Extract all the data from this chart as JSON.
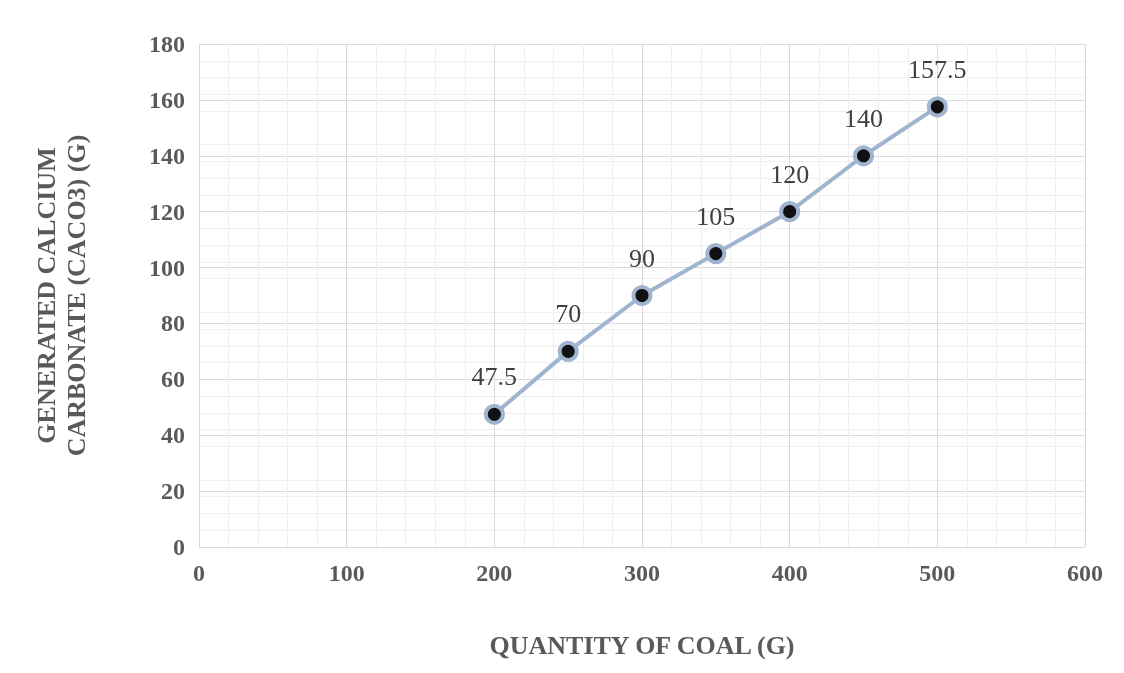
{
  "chart_data": {
    "type": "line",
    "xlabel": "QUANTITY OF COAL (G)",
    "ylabel": "GENERATED CALCIUM\nCARBONATE (CACO3) (G)",
    "x": [
      200,
      250,
      300,
      350,
      400,
      450,
      500
    ],
    "series": [
      {
        "color": "#9fb4cf",
        "values": [
          47.5,
          70,
          90,
          105,
          120,
          140,
          157.5
        ]
      }
    ],
    "xlim": [
      0,
      600
    ],
    "xticks": [
      0,
      100,
      200,
      300,
      400,
      500,
      600
    ],
    "ylim": [
      0,
      180
    ],
    "yticks": [
      0,
      20,
      40,
      60,
      80,
      100,
      120,
      140,
      160,
      180
    ],
    "grid": true,
    "marker": "circle",
    "line_style": "solid",
    "data_labels": true
  }
}
